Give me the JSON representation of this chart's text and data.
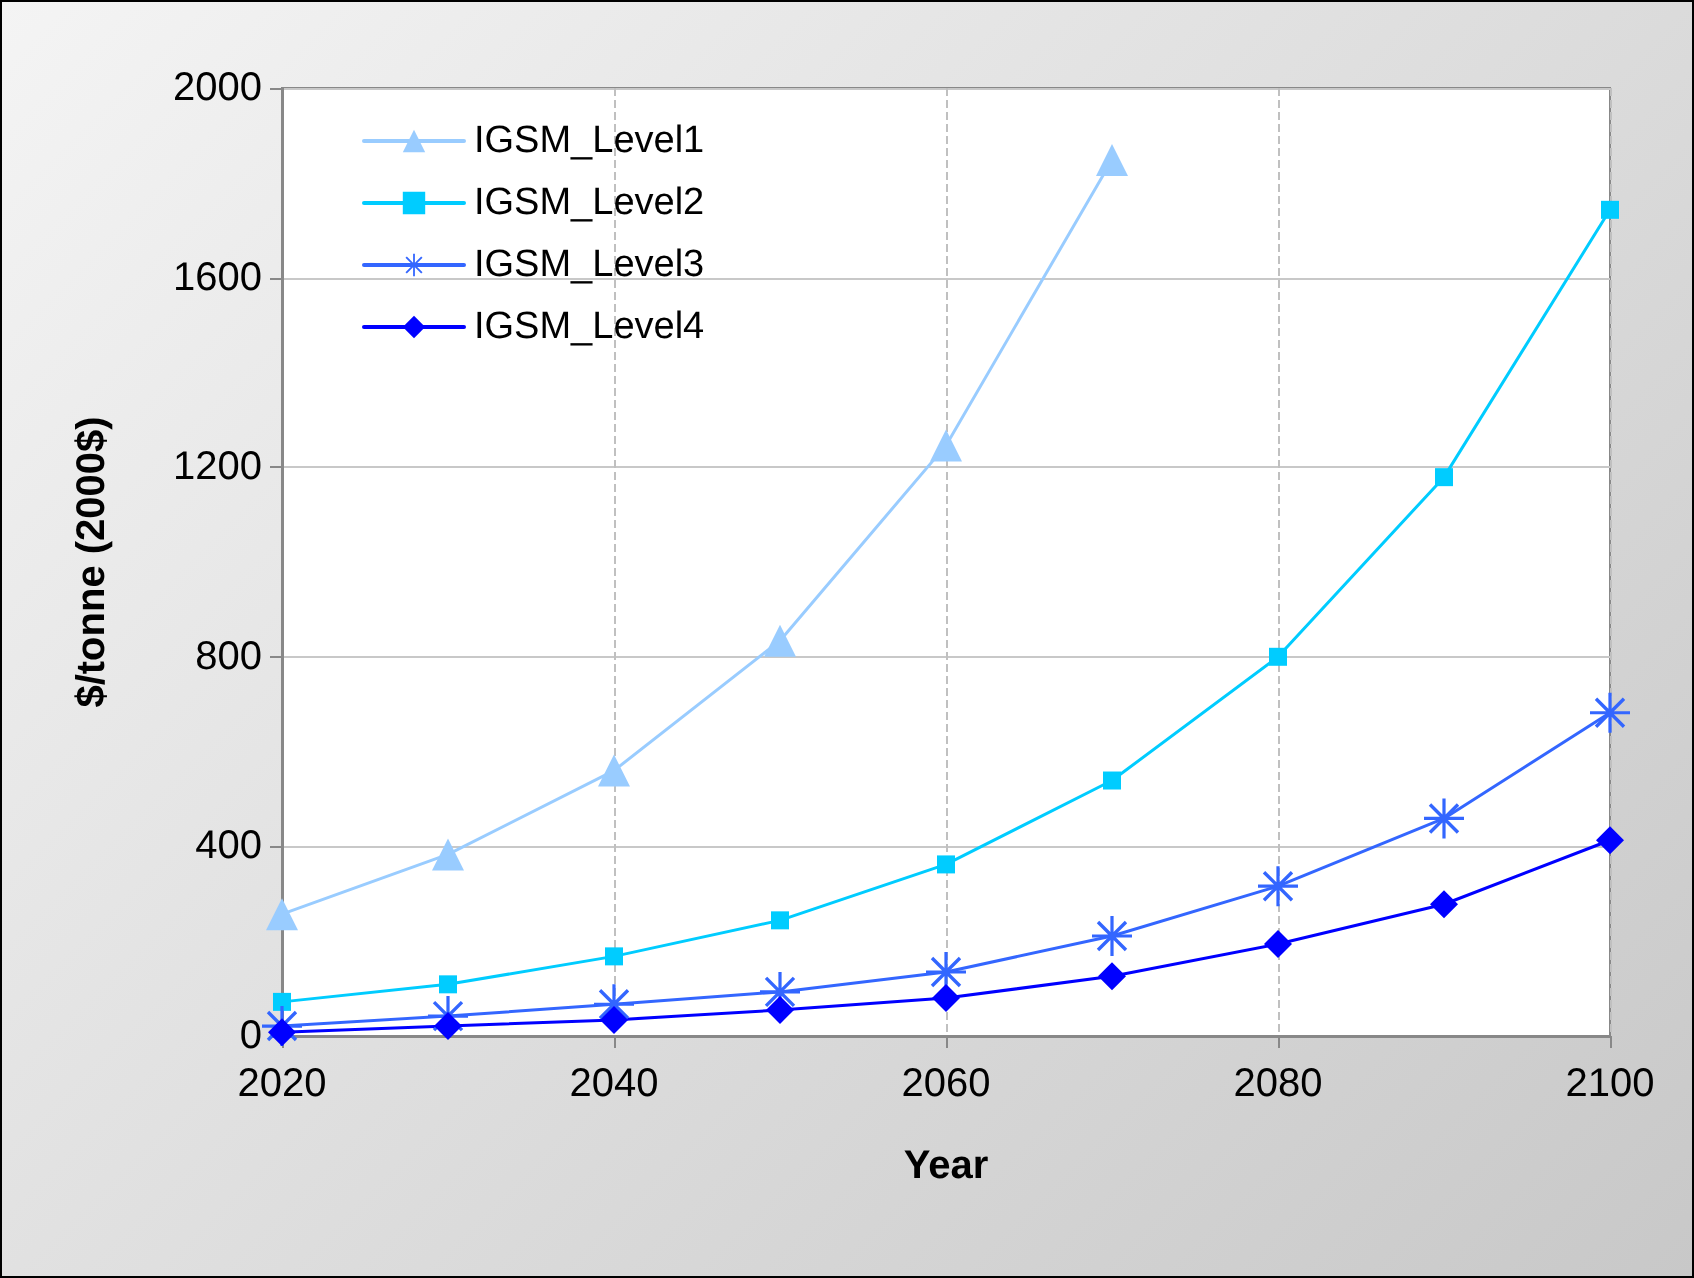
{
  "chart_data": {
    "type": "line",
    "xlabel": "Year",
    "ylabel": "$/tonne (2000$)",
    "x": [
      2020,
      2030,
      2040,
      2050,
      2060,
      2070,
      2080,
      2090,
      2100
    ],
    "series": [
      {
        "name": "IGSM_Level1",
        "color": "#99ccff",
        "marker": "triangle",
        "values": [
          257,
          383,
          560,
          834,
          1246,
          1848,
          null,
          null,
          null
        ]
      },
      {
        "name": "IGSM_Level2",
        "color": "#00ccff",
        "marker": "square",
        "values": [
          72,
          109,
          168,
          244,
          362,
          539,
          800,
          1179,
          1743
        ]
      },
      {
        "name": "IGSM_Level3",
        "color": "#3366ff",
        "marker": "cross",
        "values": [
          21,
          42,
          67,
          93,
          135,
          211,
          316,
          459,
          682
        ]
      },
      {
        "name": "IGSM_Level4",
        "color": "#0000ff",
        "marker": "diamond",
        "values": [
          8,
          21,
          34,
          55,
          80,
          126,
          194,
          278,
          413
        ]
      }
    ],
    "xlim": [
      2020,
      2100
    ],
    "xticks": [
      2020,
      2040,
      2060,
      2080,
      2100
    ],
    "ylim": [
      0,
      2000
    ],
    "yticks": [
      0,
      400,
      800,
      1200,
      1600,
      2000
    ],
    "grid": true,
    "legend": "top left",
    "line_style": "solid"
  }
}
